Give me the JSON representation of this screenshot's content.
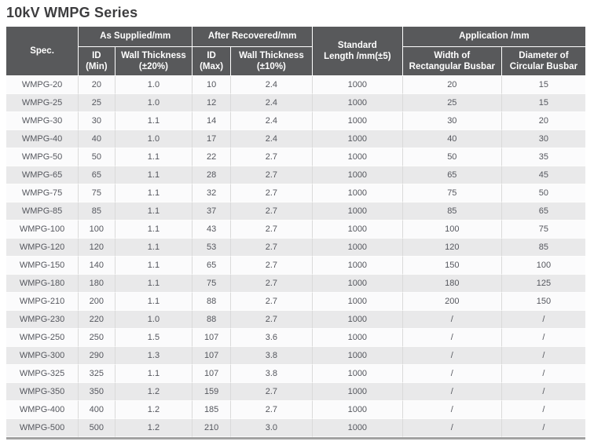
{
  "title": "10kV WMPG Series",
  "colors": {
    "header_background": "#58595b",
    "header_text": "#ffffff",
    "row_stripe_light": "#fbfbfc",
    "row_stripe_dark": "#e9e9ea",
    "body_text": "#55575e",
    "table_bottom_border": "#a2a2a2",
    "title_text": "#3d3d3f"
  },
  "table": {
    "header": {
      "spec": "Spec.",
      "as_supplied": "As Supplied/mm",
      "after_recovered": "After Recovered/mm",
      "standard_length": {
        "line1": "Standard",
        "line2": "Length /mm(±5)"
      },
      "application": "Application /mm",
      "id_min": {
        "line1": "ID",
        "line2": "(Min)"
      },
      "wall_thickness_20": {
        "line1": "Wall Thickness",
        "line2": "(±20%)"
      },
      "id_max": {
        "line1": "ID",
        "line2": "(Max)"
      },
      "wall_thickness_10": {
        "line1": "Wall Thickness",
        "line2": "(±10%)"
      },
      "width_rectangular": {
        "line1": "Width of",
        "line2": "Rectangular Busbar"
      },
      "diameter_circular": {
        "line1": "Diameter of",
        "line2": "Circular Busbar"
      }
    },
    "rows": [
      [
        "WMPG-20",
        "20",
        "1.0",
        "10",
        "2.4",
        "1000",
        "20",
        "15"
      ],
      [
        "WMPG-25",
        "25",
        "1.0",
        "12",
        "2.4",
        "1000",
        "25",
        "15"
      ],
      [
        "WMPG-30",
        "30",
        "1.1",
        "14",
        "2.4",
        "1000",
        "30",
        "20"
      ],
      [
        "WMPG-40",
        "40",
        "1.0",
        "17",
        "2.4",
        "1000",
        "40",
        "30"
      ],
      [
        "WMPG-50",
        "50",
        "1.1",
        "22",
        "2.7",
        "1000",
        "50",
        "35"
      ],
      [
        "WMPG-65",
        "65",
        "1.1",
        "28",
        "2.7",
        "1000",
        "65",
        "45"
      ],
      [
        "WMPG-75",
        "75",
        "1.1",
        "32",
        "2.7",
        "1000",
        "75",
        "50"
      ],
      [
        "WMPG-85",
        "85",
        "1.1",
        "37",
        "2.7",
        "1000",
        "85",
        "65"
      ],
      [
        "WMPG-100",
        "100",
        "1.1",
        "43",
        "2.7",
        "1000",
        "100",
        "75"
      ],
      [
        "WMPG-120",
        "120",
        "1.1",
        "53",
        "2.7",
        "1000",
        "120",
        "85"
      ],
      [
        "WMPG-150",
        "140",
        "1.1",
        "65",
        "2.7",
        "1000",
        "150",
        "100"
      ],
      [
        "WMPG-180",
        "180",
        "1.1",
        "75",
        "2.7",
        "1000",
        "180",
        "125"
      ],
      [
        "WMPG-210",
        "200",
        "1.1",
        "88",
        "2.7",
        "1000",
        "200",
        "150"
      ],
      [
        "WMPG-230",
        "220",
        "1.0",
        "88",
        "2.7",
        "1000",
        "/",
        "/"
      ],
      [
        "WMPG-250",
        "250",
        "1.5",
        "107",
        "3.6",
        "1000",
        "/",
        "/"
      ],
      [
        "WMPG-300",
        "290",
        "1.3",
        "107",
        "3.8",
        "1000",
        "/",
        "/"
      ],
      [
        "WMPG-325",
        "325",
        "1.1",
        "107",
        "3.8",
        "1000",
        "/",
        "/"
      ],
      [
        "WMPG-350",
        "350",
        "1.2",
        "159",
        "2.7",
        "1000",
        "/",
        "/"
      ],
      [
        "WMPG-400",
        "400",
        "1.2",
        "185",
        "2.7",
        "1000",
        "/",
        "/"
      ],
      [
        "WMPG-500",
        "500",
        "1.2",
        "210",
        "3.0",
        "1000",
        "/",
        "/"
      ]
    ]
  }
}
